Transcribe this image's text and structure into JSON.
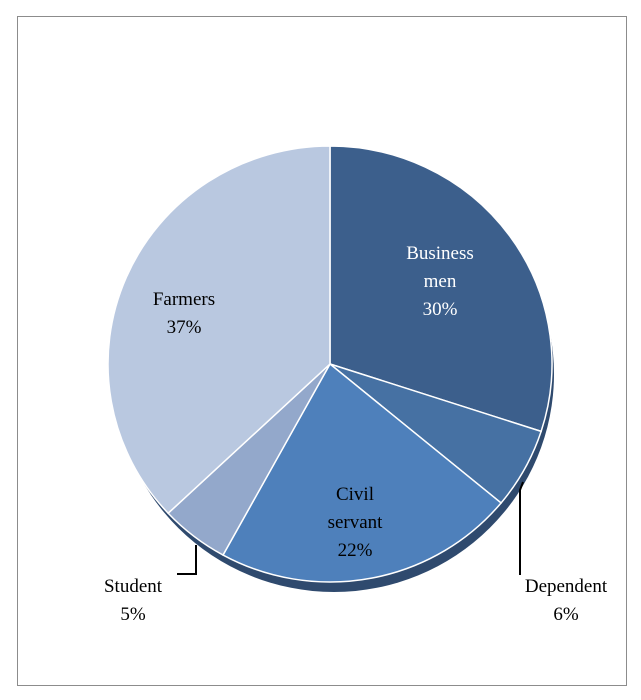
{
  "chart_data": {
    "type": "pie",
    "title": "",
    "categories": [
      "Business men",
      "Dependent",
      "Civil servant",
      "Student",
      "Farmers"
    ],
    "values": [
      30,
      6,
      22,
      5,
      37
    ],
    "labels": [
      {
        "lines": [
          "Business",
          "men",
          "30%"
        ],
        "color": "#ffffff"
      },
      {
        "lines": [
          "Dependent",
          "6%"
        ],
        "color": "#000000"
      },
      {
        "lines": [
          "Civil",
          "servant",
          "22%"
        ],
        "color": "#000000"
      },
      {
        "lines": [
          "Student",
          "5%"
        ],
        "color": "#000000"
      },
      {
        "lines": [
          "Farmers",
          "37%"
        ],
        "color": "#000000"
      }
    ],
    "colors": [
      "#3c5f8c",
      "#4671a3",
      "#4e80bb",
      "#93a8cb",
      "#b9c8e0"
    ],
    "start_angle": "12 o'clock",
    "direction": "clockwise",
    "legend": "none"
  }
}
